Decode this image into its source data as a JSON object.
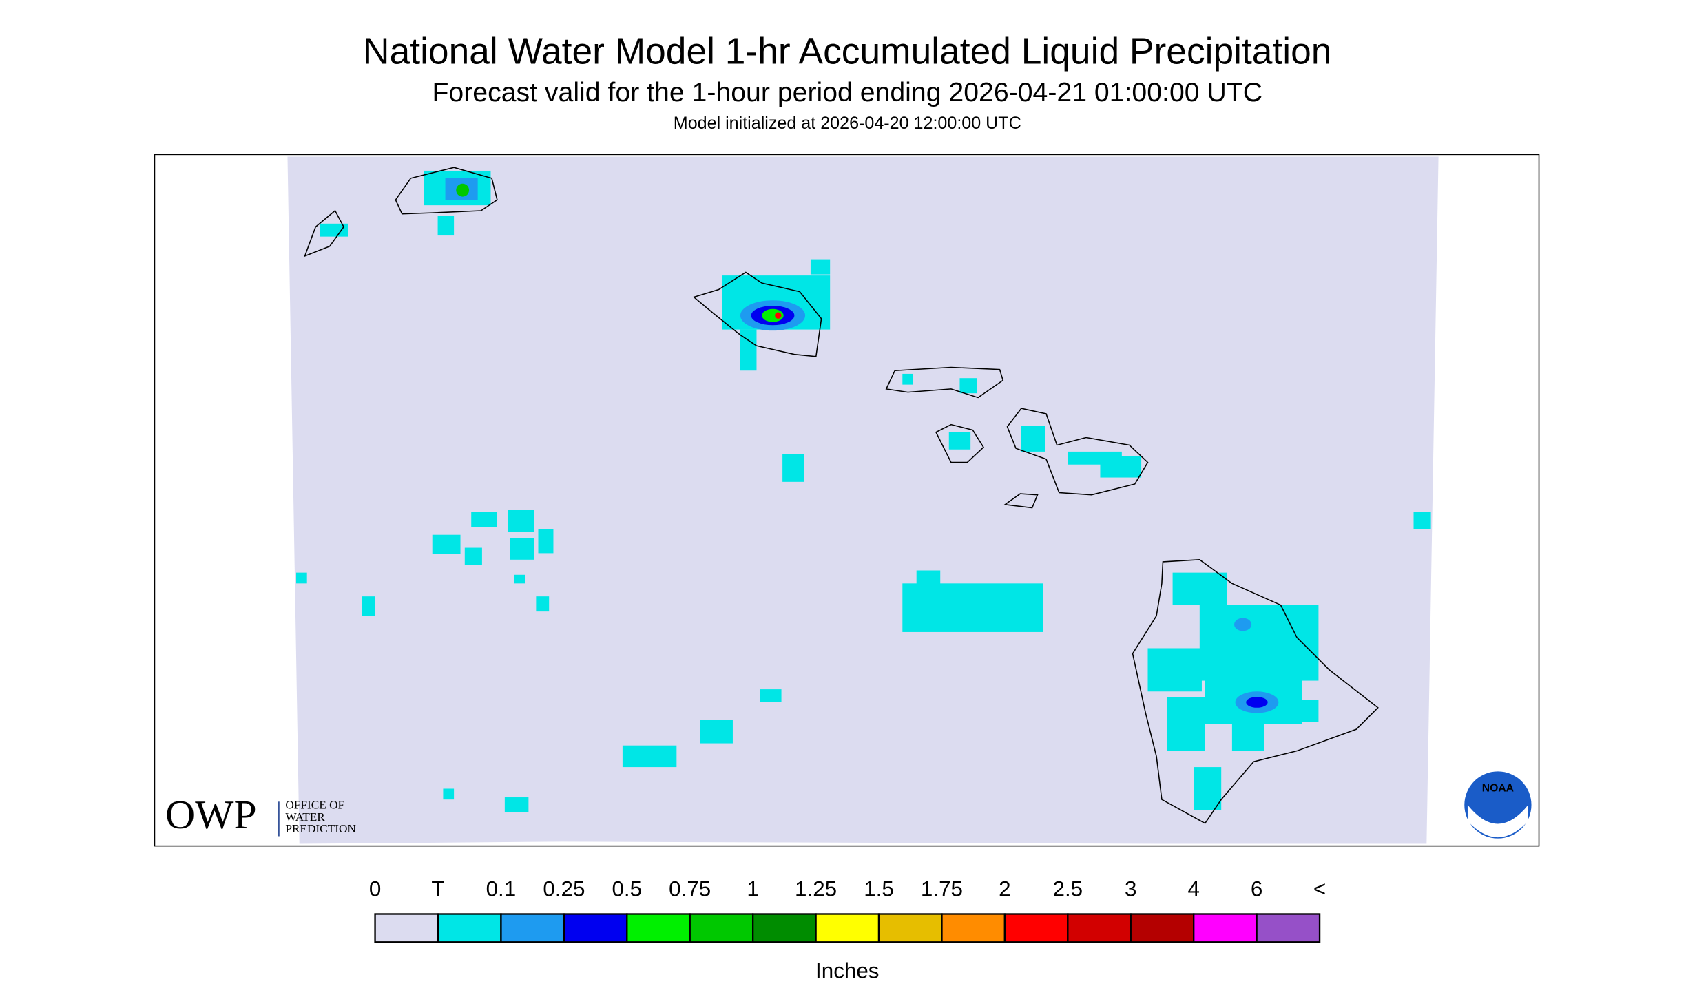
{
  "header": {
    "title": "National Water Model 1-hr Accumulated Liquid Precipitation",
    "subtitle": "Forecast valid for the 1-hour period ending 2026-04-21 01:00:00 UTC",
    "init": "Model initialized at 2026-04-20 12:00:00 UTC"
  },
  "legend": {
    "labels": [
      "0",
      "T",
      "0.1",
      "0.25",
      "0.5",
      "0.75",
      "1",
      "1.25",
      "1.5",
      "1.75",
      "2",
      "2.5",
      "3",
      "4",
      "6",
      "<"
    ],
    "colors": [
      "#dcdcf0",
      "#00e6e6",
      "#1e9bf0",
      "#0000f0",
      "#00f000",
      "#00c800",
      "#008c00",
      "#ffff00",
      "#e6be00",
      "#ff8c00",
      "#ff0000",
      "#d20000",
      "#b40000",
      "#ff00ff",
      "#9650c8"
    ],
    "unit": "Inches"
  },
  "logos": {
    "owp": "OWP",
    "owp_lines": [
      "OFFICE OF",
      "WATER",
      "PREDICTION"
    ],
    "noaa": "NOAA"
  }
}
